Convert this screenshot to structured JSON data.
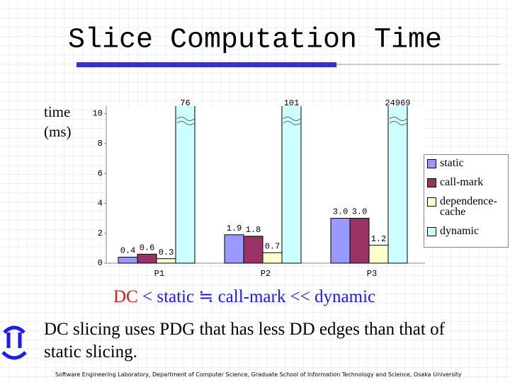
{
  "chart_data": {
    "type": "bar",
    "title": "Slice Computation Time",
    "y_label": "time (ms)",
    "categories": [
      "P1",
      "P2",
      "P3"
    ],
    "series": [
      {
        "name": "static",
        "color": "#9999ff",
        "values": [
          0.4,
          1.9,
          3.0
        ],
        "value_labels": [
          "0.4",
          "1.9",
          "3.0"
        ]
      },
      {
        "name": "call-mark",
        "color": "#993366",
        "values": [
          0.6,
          1.8,
          3.0
        ],
        "value_labels": [
          "0.6",
          "1.8",
          "3.0"
        ]
      },
      {
        "name": "dependence-cache",
        "color": "#ffffcc",
        "values": [
          0.3,
          0.7,
          1.2
        ],
        "value_labels": [
          "0.3",
          "0.7",
          "1.2"
        ]
      },
      {
        "name": "dynamic",
        "color": "#ccffff",
        "values": [
          76,
          101,
          24969
        ]
      }
    ],
    "ylim": [
      0,
      10.5
    ],
    "yticks": [
      0,
      2,
      4,
      6,
      8,
      10
    ],
    "legend": "right"
  },
  "comparison": {
    "lhs": "DC",
    "rhs": "< static ≒ call-mark << dynamic"
  },
  "body": "DC slicing uses PDG that has less DD edges than that of static slicing.",
  "footer": "Software Engineering Laboratory, Department of Computer Science, Graduate School of Information Technology and Science, Osaka University"
}
